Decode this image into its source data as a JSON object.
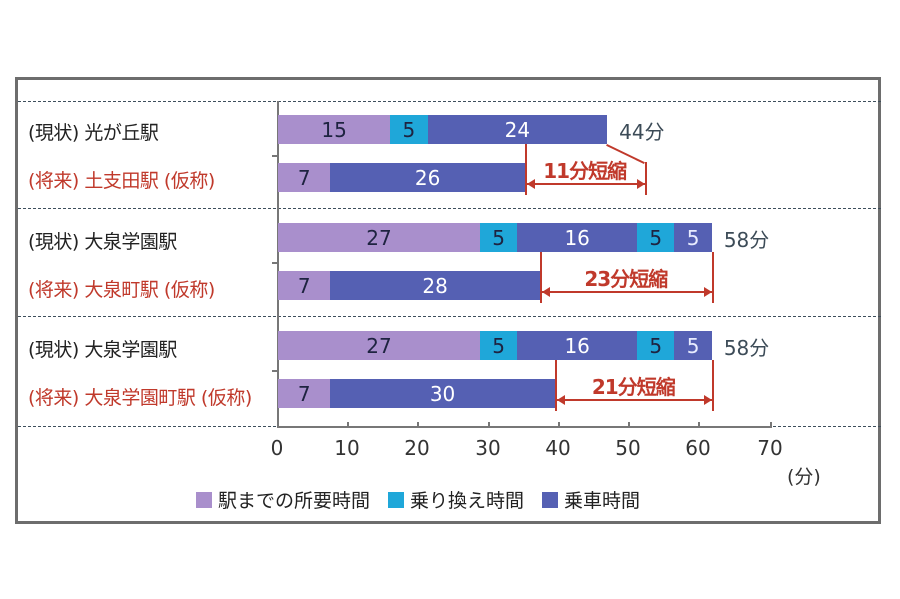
{
  "chart_data": {
    "type": "bar",
    "orientation": "horizontal",
    "stacked": true,
    "title": "",
    "xlabel": "(分)",
    "ylabel": "",
    "xlim": [
      0,
      70
    ],
    "xticks": [
      "0",
      "10",
      "20",
      "30",
      "40",
      "50",
      "60",
      "70"
    ],
    "grid": false,
    "legend_position": "bottom",
    "categories": [
      "(現状) 光が丘駅",
      "(将来) 土支田駅 (仮称)",
      "(現状) 大泉学園駅",
      "(将来) 大泉町駅 (仮称)",
      "(現状) 大泉学園駅",
      "(将来) 大泉学園町駅 (仮称)"
    ],
    "rows": [
      {
        "label": "(現状) 光が丘駅",
        "kind": "current",
        "segments": [
          {
            "type": "access",
            "value": 15
          },
          {
            "type": "transfer",
            "value": 5
          },
          {
            "type": "ride",
            "value": 24
          }
        ],
        "total": 44,
        "total_label": "44分"
      },
      {
        "label": "(将来) 土支田駅 (仮称)",
        "kind": "future",
        "segments": [
          {
            "type": "access",
            "value": 7
          },
          {
            "type": "ride",
            "value": 26
          }
        ],
        "total": 33,
        "reduction": 11,
        "reduction_label": "11分短縮"
      },
      {
        "label": "(現状) 大泉学園駅",
        "kind": "current",
        "segments": [
          {
            "type": "access",
            "value": 27
          },
          {
            "type": "transfer",
            "value": 5
          },
          {
            "type": "ride",
            "value": 16
          },
          {
            "type": "transfer",
            "value": 5
          },
          {
            "type": "ride",
            "value": 5
          }
        ],
        "total": 58,
        "total_label": "58分"
      },
      {
        "label": "(将来) 大泉町駅 (仮称)",
        "kind": "future",
        "segments": [
          {
            "type": "access",
            "value": 7
          },
          {
            "type": "ride",
            "value": 28
          }
        ],
        "total": 35,
        "reduction": 23,
        "reduction_label": "23分短縮"
      },
      {
        "label": "(現状) 大泉学園駅",
        "kind": "current",
        "segments": [
          {
            "type": "access",
            "value": 27
          },
          {
            "type": "transfer",
            "value": 5
          },
          {
            "type": "ride",
            "value": 16
          },
          {
            "type": "transfer",
            "value": 5
          },
          {
            "type": "ride",
            "value": 5
          }
        ],
        "total": 58,
        "total_label": "58分"
      },
      {
        "label": "(将来) 大泉学園町駅 (仮称)",
        "kind": "future",
        "segments": [
          {
            "type": "access",
            "value": 7
          },
          {
            "type": "ride",
            "value": 30
          }
        ],
        "total": 37,
        "reduction": 21,
        "reduction_label": "21分短縮"
      }
    ],
    "series": [
      {
        "name": "駅までの所要時間",
        "key": "access",
        "color": "#a98fcc"
      },
      {
        "name": "乗り換え時間",
        "key": "transfer",
        "color": "#1fa7d9"
      },
      {
        "name": "乗車時間",
        "key": "ride",
        "color": "#5560b3"
      }
    ]
  },
  "axis": {
    "ticks": [
      "0",
      "10",
      "20",
      "30",
      "40",
      "50",
      "60",
      "70"
    ],
    "unit": "(分)"
  },
  "colors": {
    "access": "#a98fcc",
    "transfer": "#1fa7d9",
    "ride": "#5560b3",
    "reduction": "#c0392b",
    "current_label": "#222222",
    "future_label": "#c0392b"
  }
}
